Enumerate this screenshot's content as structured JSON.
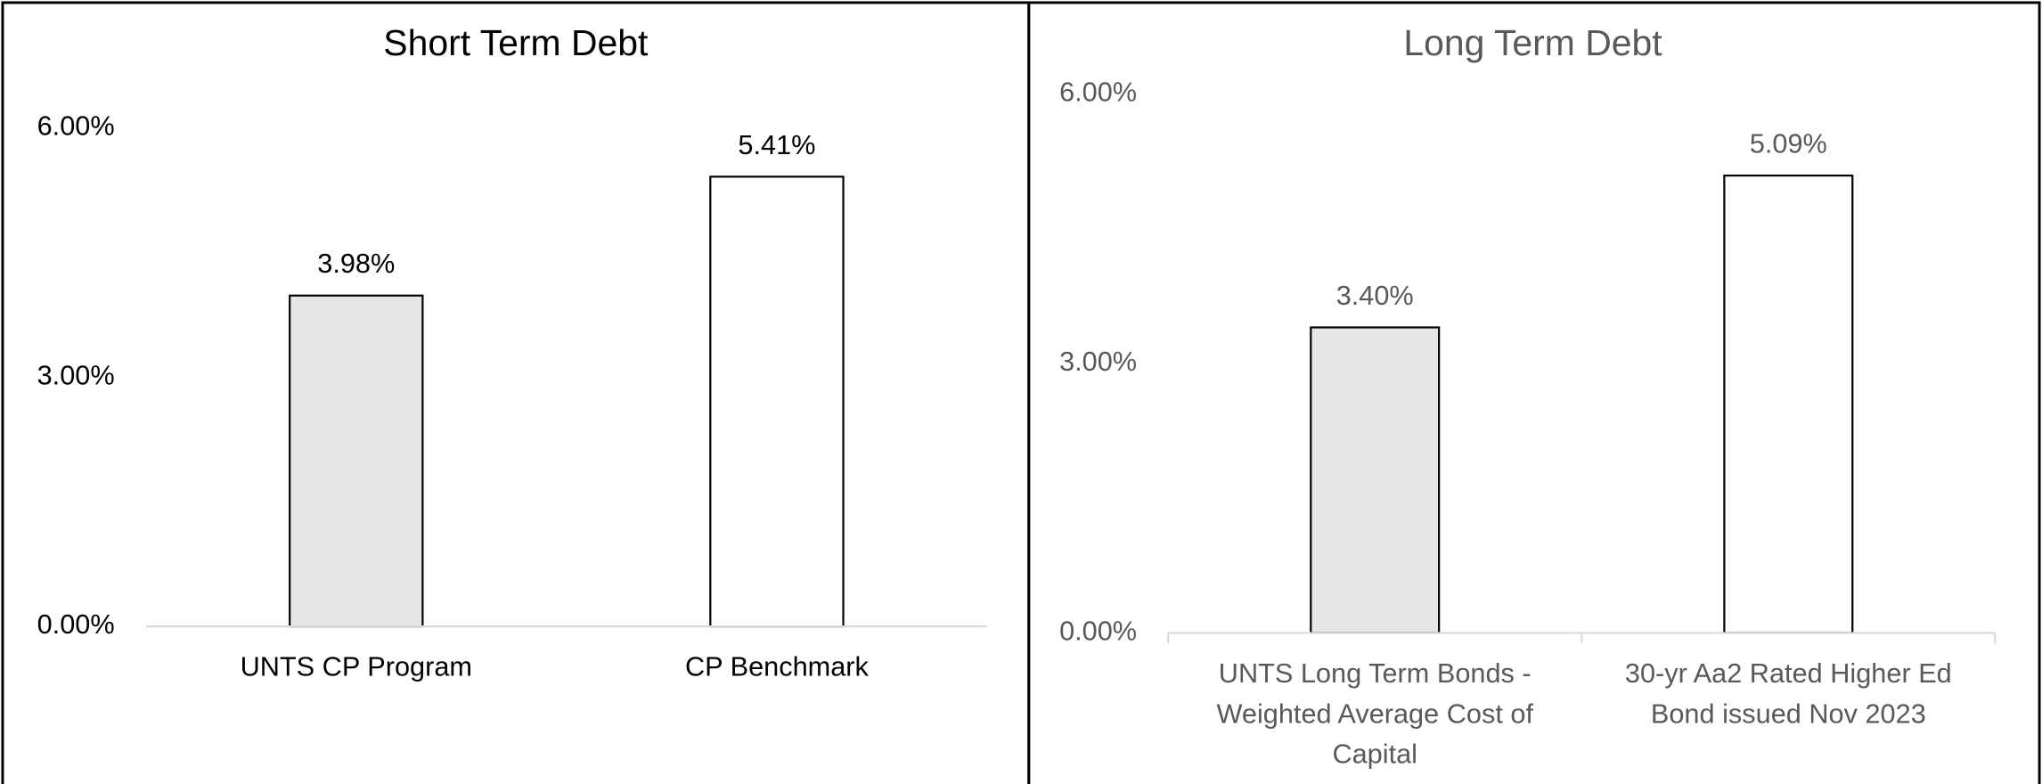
{
  "chart_data": [
    {
      "type": "bar",
      "title": "Short Term Debt",
      "categories": [
        "UNTS CP Program",
        "CP Benchmark"
      ],
      "values": [
        3.98,
        5.41
      ],
      "value_labels": [
        "3.98%",
        "5.41%"
      ],
      "colors": [
        "#e6e6e6",
        "#ffffff"
      ],
      "text_color": "#000000",
      "ylim": [
        0,
        6
      ],
      "yticks": [
        {
          "value": 0,
          "label": "0.00%"
        },
        {
          "value": 3,
          "label": "3.00%"
        },
        {
          "value": 6,
          "label": "6.00%"
        }
      ],
      "grid": false
    },
    {
      "type": "bar",
      "title": "Long Term Debt",
      "categories": [
        "UNTS Long Term Bonds - Weighted Average Cost of Capital",
        "30-yr Aa2 Rated Higher Ed Bond issued Nov 2023"
      ],
      "values": [
        3.4,
        5.09
      ],
      "value_labels": [
        "3.40%",
        "5.09%"
      ],
      "colors": [
        "#e6e6e6",
        "#ffffff"
      ],
      "text_color": "#595959",
      "ylim": [
        0,
        6
      ],
      "yticks": [
        {
          "value": 0,
          "label": "0.00%"
        },
        {
          "value": 3,
          "label": "3.00%"
        },
        {
          "value": 6,
          "label": "6.00%"
        }
      ],
      "grid": false
    }
  ]
}
